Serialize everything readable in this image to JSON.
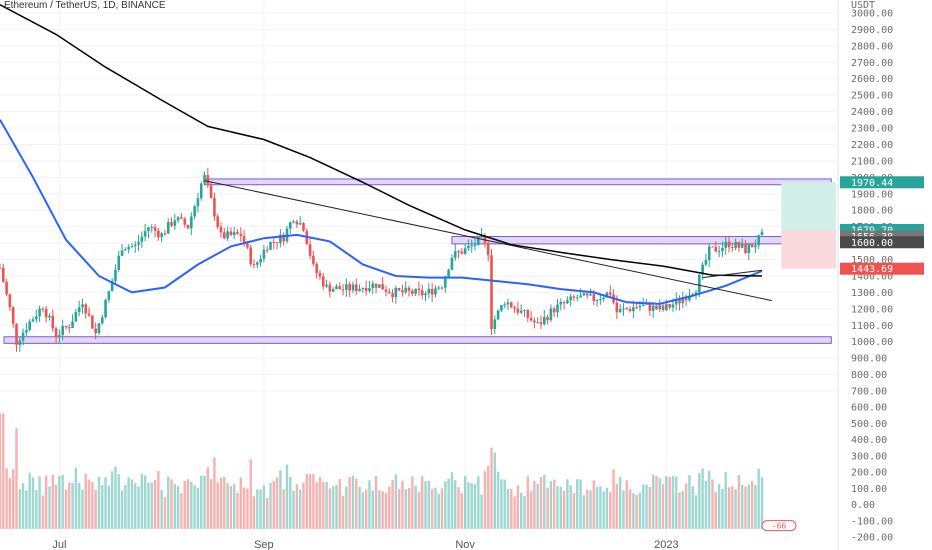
{
  "title": "Ethereum / TetherUS, 1D, BINANCE",
  "currency": "USDT",
  "colors": {
    "up": "#26a69a",
    "down": "#ef5350",
    "sma_blue": "#2962ff",
    "ma_black": "#000000",
    "zone_fill": "#d9c8f5",
    "zone_stroke": "#7a5ccf",
    "target_fill": "#d3efe9",
    "stop_fill": "#fadadd",
    "tag_green": "#26a69a",
    "tag_red": "#ef5350",
    "tag_gray": "#777777",
    "tag_dark": "#4a4a4a"
  },
  "price_axis_labels": [
    "3000.00",
    "2900.00",
    "2800.00",
    "2700.00",
    "2600.00",
    "2500.00",
    "2400.00",
    "2300.00",
    "2200.00",
    "2100.00",
    "2000.00",
    "1900.00",
    "1800.00",
    "1700.00",
    "1600.00",
    "1500.00",
    "1400.00",
    "1300.00",
    "1200.00",
    "1100.00",
    "1000.00",
    "900.00",
    "800.00",
    "700.00"
  ],
  "volume_axis_labels": [
    "600.00",
    "500.00",
    "400.00",
    "300.00",
    "200.00",
    "100.00",
    "0.00",
    "-100.00",
    "-200.00"
  ],
  "date_labels": [
    "Jul",
    "Sep",
    "Nov",
    "2023"
  ],
  "price_tags": [
    {
      "label": "1970.44",
      "kind": "green",
      "price": 1970
    },
    {
      "label": "1679.70",
      "kind": "green",
      "price": 1680
    },
    {
      "label": "1656.38",
      "kind": "gray",
      "price": 1640
    },
    {
      "label": "1600.00",
      "kind": "dark",
      "price": 1605
    },
    {
      "label": "1443.69",
      "kind": "red",
      "price": 1444
    }
  ],
  "volume_tag": "-66",
  "chart_data": {
    "type": "candlestick",
    "symbol": "ETHUSDT",
    "timeframe": "1D",
    "exchange": "BINANCE",
    "x_range": [
      "2022-06-13",
      "2023-01-30"
    ],
    "ylim": [
      650,
      3050
    ],
    "volume_ylim": [
      -200,
      620
    ],
    "ohlc_anchors": [
      [
        "2022-06-13",
        1450
      ],
      [
        "2022-06-16",
        1200
      ],
      [
        "2022-06-18",
        1000
      ],
      [
        "2022-06-22",
        1120
      ],
      [
        "2022-06-26",
        1220
      ],
      [
        "2022-06-30",
        1040
      ],
      [
        "2022-07-04",
        1100
      ],
      [
        "2022-07-08",
        1250
      ],
      [
        "2022-07-12",
        1050
      ],
      [
        "2022-07-16",
        1300
      ],
      [
        "2022-07-20",
        1580
      ],
      [
        "2022-07-24",
        1580
      ],
      [
        "2022-07-28",
        1700
      ],
      [
        "2022-08-01",
        1650
      ],
      [
        "2022-08-05",
        1750
      ],
      [
        "2022-08-09",
        1700
      ],
      [
        "2022-08-13",
        1960
      ],
      [
        "2022-08-14",
        2000
      ],
      [
        "2022-08-19",
        1640
      ],
      [
        "2022-08-25",
        1650
      ],
      [
        "2022-08-29",
        1450
      ],
      [
        "2022-09-02",
        1590
      ],
      [
        "2022-09-07",
        1640
      ],
      [
        "2022-09-10",
        1760
      ],
      [
        "2022-09-13",
        1700
      ],
      [
        "2022-09-16",
        1450
      ],
      [
        "2022-09-20",
        1330
      ],
      [
        "2022-09-25",
        1320
      ],
      [
        "2022-09-30",
        1330
      ],
      [
        "2022-10-05",
        1350
      ],
      [
        "2022-10-10",
        1300
      ],
      [
        "2022-10-15",
        1300
      ],
      [
        "2022-10-20",
        1290
      ],
      [
        "2022-10-25",
        1350
      ],
      [
        "2022-10-28",
        1520
      ],
      [
        "2022-11-02",
        1570
      ],
      [
        "2022-11-06",
        1620
      ],
      [
        "2022-11-08",
        1550
      ],
      [
        "2022-11-09",
        1100
      ],
      [
        "2022-11-13",
        1250
      ],
      [
        "2022-11-20",
        1150
      ],
      [
        "2022-11-23",
        1100
      ],
      [
        "2022-11-28",
        1200
      ],
      [
        "2022-12-05",
        1270
      ],
      [
        "2022-12-10",
        1260
      ],
      [
        "2022-12-15",
        1300
      ],
      [
        "2022-12-17",
        1180
      ],
      [
        "2022-12-24",
        1220
      ],
      [
        "2022-12-31",
        1195
      ],
      [
        "2023-01-05",
        1250
      ],
      [
        "2023-01-10",
        1330
      ],
      [
        "2023-01-14",
        1550
      ],
      [
        "2023-01-17",
        1570
      ],
      [
        "2023-01-20",
        1600
      ],
      [
        "2023-01-25",
        1560
      ],
      [
        "2023-01-28",
        1600
      ],
      [
        "2023-01-30",
        1640
      ]
    ],
    "sma_blue": [
      [
        "2022-06-13",
        2350
      ],
      [
        "2022-06-23",
        2000
      ],
      [
        "2022-07-03",
        1620
      ],
      [
        "2022-07-13",
        1400
      ],
      [
        "2022-07-23",
        1300
      ],
      [
        "2022-08-02",
        1330
      ],
      [
        "2022-08-12",
        1470
      ],
      [
        "2022-08-22",
        1580
      ],
      [
        "2022-09-01",
        1630
      ],
      [
        "2022-09-11",
        1650
      ],
      [
        "2022-09-21",
        1610
      ],
      [
        "2022-10-01",
        1470
      ],
      [
        "2022-10-11",
        1400
      ],
      [
        "2022-10-21",
        1390
      ],
      [
        "2022-10-31",
        1390
      ],
      [
        "2022-11-10",
        1370
      ],
      [
        "2022-11-20",
        1350
      ],
      [
        "2022-11-30",
        1320
      ],
      [
        "2022-12-10",
        1300
      ],
      [
        "2022-12-20",
        1240
      ],
      [
        "2022-12-30",
        1230
      ],
      [
        "2023-01-09",
        1280
      ],
      [
        "2023-01-19",
        1340
      ],
      [
        "2023-01-30",
        1430
      ]
    ],
    "ma_black": [
      [
        "2022-06-13",
        3050
      ],
      [
        "2022-06-30",
        2870
      ],
      [
        "2022-07-15",
        2670
      ],
      [
        "2022-08-01",
        2470
      ],
      [
        "2022-08-15",
        2310
      ],
      [
        "2022-09-01",
        2230
      ],
      [
        "2022-09-15",
        2120
      ],
      [
        "2022-10-01",
        1970
      ],
      [
        "2022-10-15",
        1830
      ],
      [
        "2022-11-01",
        1680
      ],
      [
        "2022-11-15",
        1590
      ],
      [
        "2022-12-01",
        1540
      ],
      [
        "2022-12-15",
        1500
      ],
      [
        "2022-12-31",
        1460
      ],
      [
        "2023-01-15",
        1405
      ],
      [
        "2023-01-30",
        1400
      ]
    ],
    "trendline": [
      [
        "2022-08-14",
        1980
      ],
      [
        "2023-02-02",
        1250
      ]
    ],
    "short_ray": [
      [
        "2023-01-12",
        1390
      ],
      [
        "2023-01-30",
        1435
      ]
    ],
    "zones": [
      {
        "from": "2022-08-14",
        "to": "2023-02-20",
        "low": 1955,
        "high": 1990
      },
      {
        "from": "2022-10-28",
        "to": "2023-02-20",
        "low": 1595,
        "high": 1640
      },
      {
        "from": "2022-06-13",
        "to": "2023-02-20",
        "low": 990,
        "high": 1030
      }
    ],
    "position": {
      "from": "2023-01-31",
      "to": "2023-02-20",
      "entry": 1680,
      "target": 1970,
      "stop": 1444
    }
  }
}
